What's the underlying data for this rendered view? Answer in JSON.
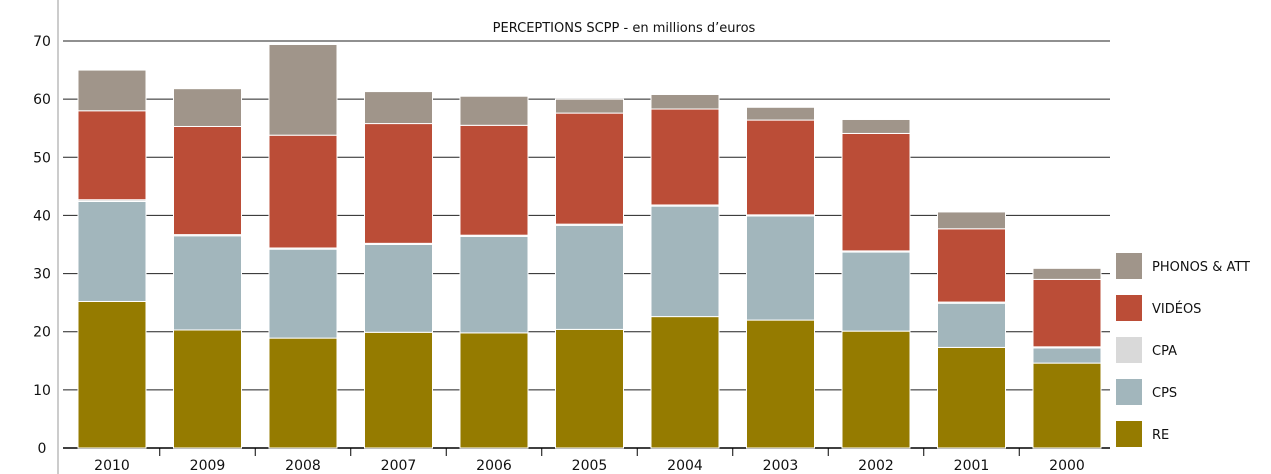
{
  "chart_data": {
    "type": "bar",
    "stacked": true,
    "title": "PERCEPTIONS SCPP  - en millions d’euros",
    "xlabel": "",
    "ylabel": "",
    "ylim": [
      0,
      70
    ],
    "yticks": [
      "0",
      "10",
      "20",
      "30",
      "40",
      "50",
      "60",
      "70"
    ],
    "grid": true,
    "legend_position": "right",
    "categories": [
      "2010",
      "2009",
      "2008",
      "2007",
      "2006",
      "2005",
      "2004",
      "2003",
      "2002",
      "2001",
      "2000"
    ],
    "series": [
      {
        "name": "RE",
        "color": "#957b00",
        "values": [
          25.2,
          20.3,
          18.9,
          19.9,
          19.8,
          20.4,
          22.6,
          22.0,
          20.1,
          17.3,
          14.6
        ]
      },
      {
        "name": "CPS",
        "color": "#a2b6bc",
        "values": [
          17.2,
          16.2,
          15.3,
          15.1,
          16.6,
          17.9,
          19.0,
          17.9,
          13.6,
          7.6,
          2.6
        ]
      },
      {
        "name": "CPA",
        "color": "#d9d9d9",
        "values": [
          0.3,
          0.2,
          0.2,
          0.2,
          0.2,
          0.2,
          0.2,
          0.2,
          0.2,
          0.2,
          0.2
        ]
      },
      {
        "name": "VIDÉOS",
        "color": "#bb4d37",
        "values": [
          15.3,
          18.6,
          19.4,
          20.6,
          18.9,
          19.1,
          16.5,
          16.3,
          20.2,
          12.6,
          11.6
        ]
      },
      {
        "name": "PHONOS & ATT",
        "color": "#a0958a",
        "values": [
          7.0,
          6.5,
          15.6,
          5.5,
          5.0,
          2.4,
          2.5,
          2.2,
          2.4,
          2.9,
          1.9
        ]
      }
    ],
    "legend_order": [
      "PHONOS & ATT",
      "VIDÉOS",
      "CPA",
      "CPS",
      "RE"
    ]
  }
}
